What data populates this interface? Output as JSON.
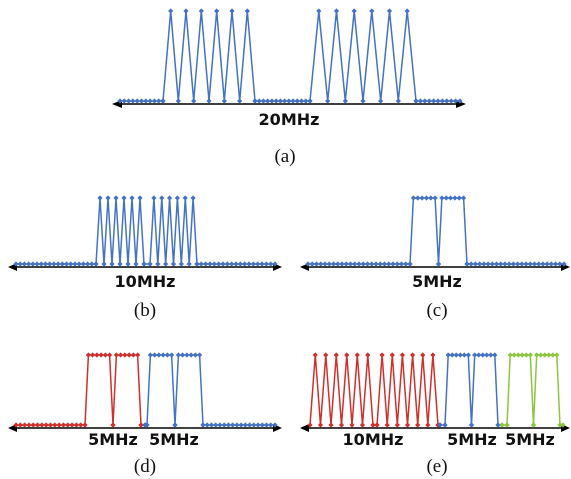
{
  "colors": {
    "blue": "#4472c4",
    "red": "#d0302b",
    "green": "#8cc63f",
    "axis": "#000000"
  },
  "panels": [
    {
      "id": "a",
      "caption": "(a)",
      "bandwidth_labels": [
        "20MHz"
      ],
      "segments": [
        {
          "color": "blue",
          "pattern": "sparse-pulses",
          "pulses": 12
        }
      ]
    },
    {
      "id": "b",
      "caption": "(b)",
      "bandwidth_labels": [
        "10MHz"
      ],
      "segments": [
        {
          "color": "blue",
          "pattern": "sparse-pulses",
          "pulses": 12
        }
      ]
    },
    {
      "id": "c",
      "caption": "(c)",
      "bandwidth_labels": [
        "5MHz"
      ],
      "segments": [
        {
          "color": "blue",
          "pattern": "flat-top-blocks",
          "blocks": 2
        }
      ]
    },
    {
      "id": "d",
      "caption": "(d)",
      "bandwidth_labels": [
        "5MHz",
        "5MHz"
      ],
      "segments": [
        {
          "color": "red",
          "pattern": "flat-top-blocks",
          "blocks": 2
        },
        {
          "color": "blue",
          "pattern": "flat-top-blocks",
          "blocks": 2
        }
      ]
    },
    {
      "id": "e",
      "caption": "(e)",
      "bandwidth_labels": [
        "10MHz",
        "5MHz",
        "5MHz"
      ],
      "segments": [
        {
          "color": "red",
          "pattern": "sparse-pulses",
          "pulses": 12
        },
        {
          "color": "blue",
          "pattern": "flat-top-blocks",
          "blocks": 2
        },
        {
          "color": "green",
          "pattern": "flat-top-blocks",
          "blocks": 2
        }
      ]
    }
  ]
}
